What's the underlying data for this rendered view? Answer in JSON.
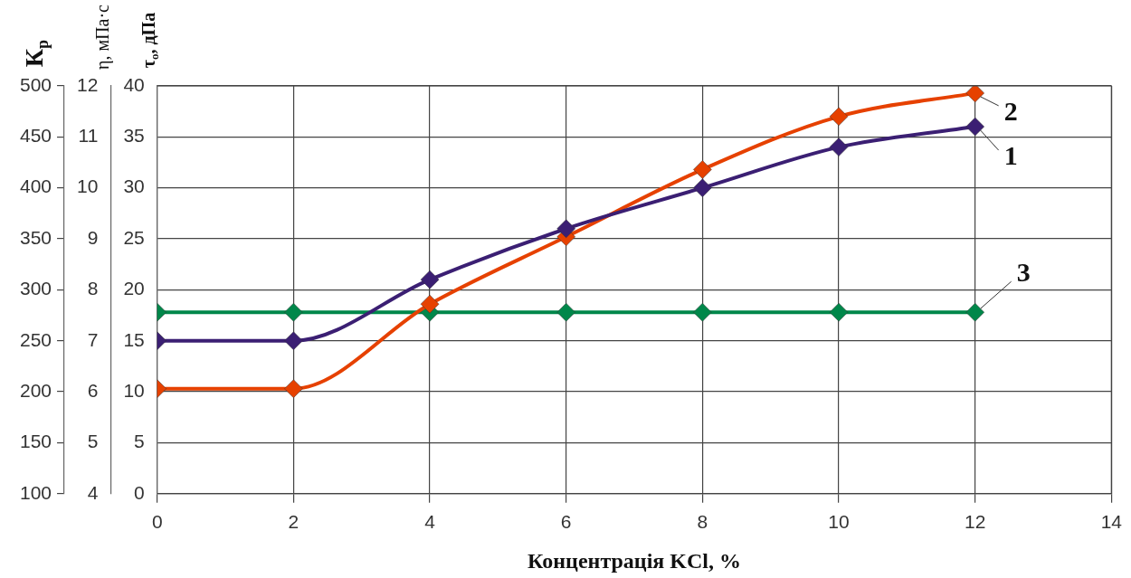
{
  "chart_data": {
    "type": "line",
    "xlabel": "Концентрація KCl, %",
    "ylabel": "К$_{р}$",
    "y2label": "η, мПа·с",
    "y3label": "τ$_{о}$, дПа",
    "x": [
      0,
      2,
      4,
      6,
      8,
      10,
      12
    ],
    "xlim": [
      0,
      14
    ],
    "xticks": [
      0,
      2,
      4,
      6,
      8,
      10,
      12,
      14
    ],
    "ylim": [
      100,
      500
    ],
    "yticks": [
      100,
      150,
      200,
      250,
      300,
      350,
      400,
      450,
      500
    ],
    "y2lim": [
      4,
      12
    ],
    "y2ticks": [
      4,
      5,
      6,
      7,
      8,
      9,
      10,
      11,
      12
    ],
    "y3lim": [
      0,
      40
    ],
    "y3ticks": [
      0,
      5,
      10,
      15,
      20,
      25,
      30,
      35,
      40
    ],
    "grid": true,
    "legend": "right",
    "marker": "diamond",
    "line_style": "solid",
    "series": [
      {
        "name": "1",
        "color": "#3b1f73",
        "axis": "y2",
        "values": [
          7.0,
          7.0,
          8.2,
          9.2,
          10.0,
          10.8,
          11.2
        ]
      },
      {
        "name": "2",
        "color": "#e64100",
        "axis": "y3",
        "values": [
          10.3,
          10.3,
          18.6,
          25.2,
          31.8,
          37.0,
          39.3
        ]
      },
      {
        "name": "3",
        "color": "#00874a",
        "axis": "y",
        "values": [
          278,
          278,
          278,
          278,
          278,
          278,
          278
        ]
      }
    ]
  }
}
